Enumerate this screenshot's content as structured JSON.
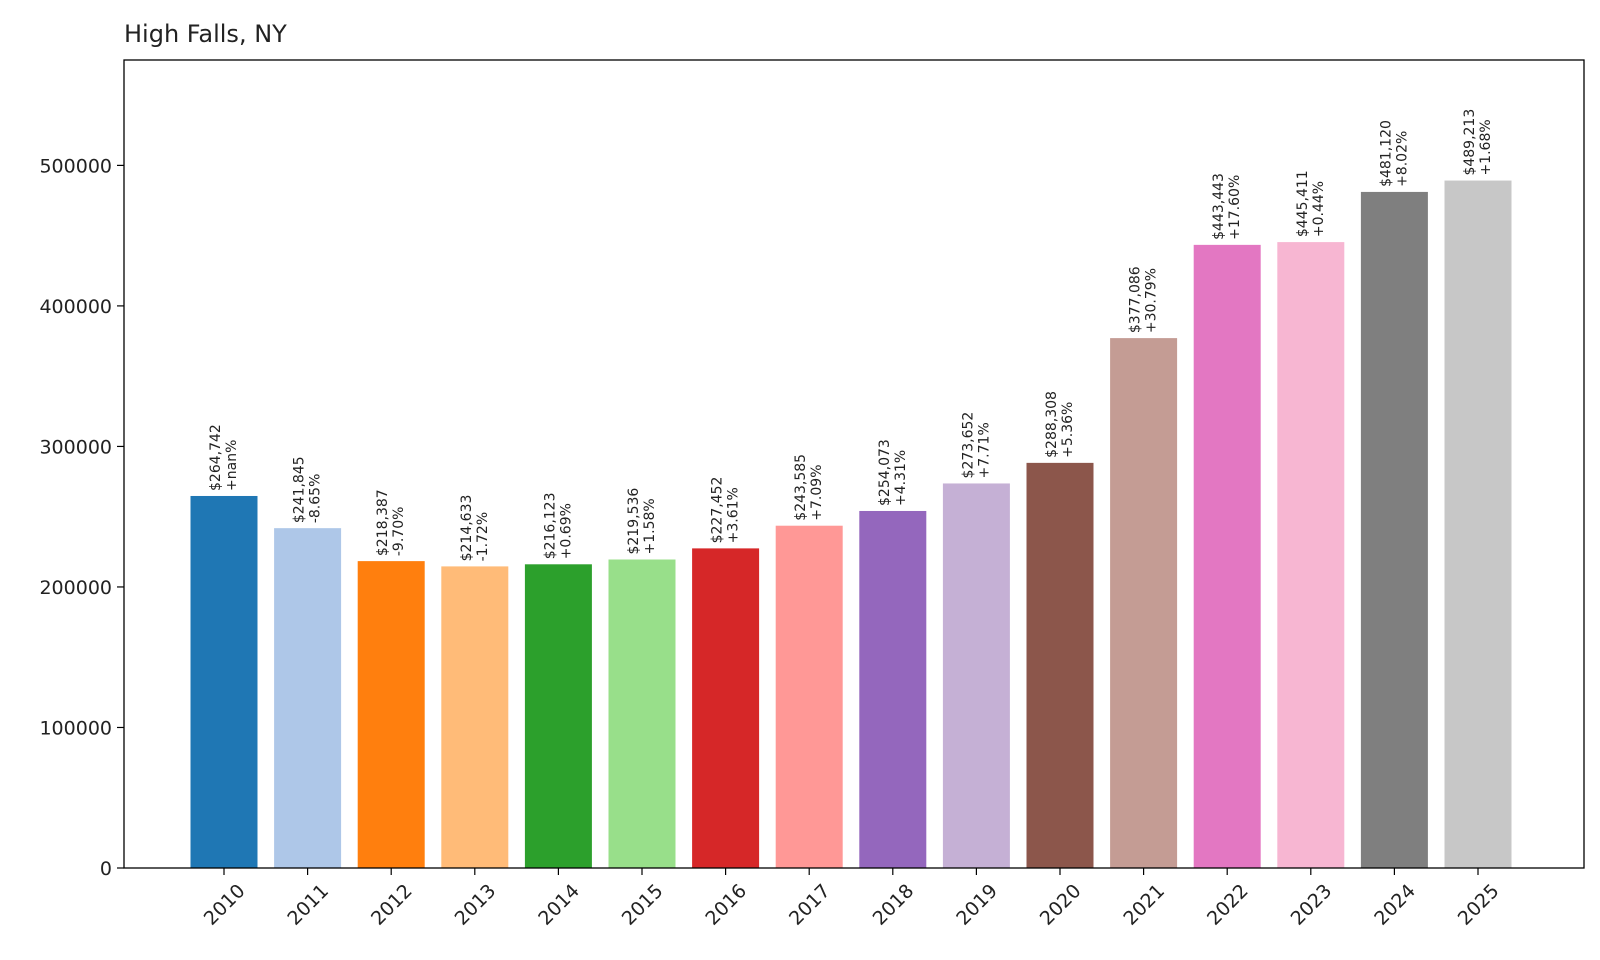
{
  "chart_data": {
    "type": "bar",
    "title": "High Falls, NY",
    "xlabel": "",
    "ylabel": "",
    "ylim": [
      0,
      575000
    ],
    "yticks": [
      "0",
      "100000",
      "200000",
      "300000",
      "400000",
      "500000"
    ],
    "grid": false,
    "categories": [
      "2010",
      "2011",
      "2012",
      "2013",
      "2014",
      "2015",
      "2016",
      "2017",
      "2018",
      "2019",
      "2020",
      "2021",
      "2022",
      "2023",
      "2024",
      "2025"
    ],
    "values": [
      264742,
      241845,
      218387,
      214633,
      216123,
      219536,
      227452,
      243585,
      254073,
      273652,
      288308,
      377086,
      443443,
      445411,
      481120,
      489213
    ],
    "value_labels": [
      "$264,742",
      "$241,845",
      "$218,387",
      "$214,633",
      "$216,123",
      "$219,536",
      "$227,452",
      "$243,585",
      "$254,073",
      "$273,652",
      "$288,308",
      "$377,086",
      "$443,443",
      "$445,411",
      "$481,120",
      "$489,213"
    ],
    "change_labels": [
      "+nan%",
      "-8.65%",
      "-9.70%",
      "-1.72%",
      "+0.69%",
      "+1.58%",
      "+3.61%",
      "+7.09%",
      "+4.31%",
      "+7.71%",
      "+5.36%",
      "+30.79%",
      "+17.60%",
      "+0.44%",
      "+8.02%",
      "+1.68%"
    ],
    "colors": [
      "#1f77b4",
      "#aec7e8",
      "#ff7f0e",
      "#ffbb78",
      "#2ca02c",
      "#98df8a",
      "#d62728",
      "#ff9896",
      "#9467bd",
      "#c5b0d5",
      "#8c564b",
      "#c49c94",
      "#e377c2",
      "#f7b6d2",
      "#7f7f7f",
      "#c7c7c7"
    ]
  }
}
